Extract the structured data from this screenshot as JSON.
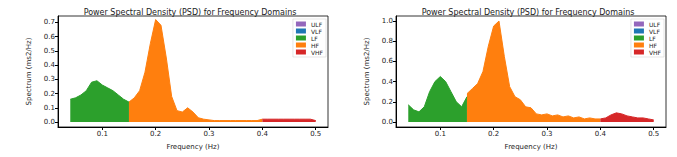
{
  "chart_data": [
    {
      "type": "area",
      "title": "Power Spectral Density (PSD) for Frequency Domains",
      "x_label": "Frequency (Hz)",
      "y_label": "Spectrum (ms2/Hz)",
      "xlim": [
        0.017,
        0.523
      ],
      "xticks": [
        0.1,
        0.2,
        0.3,
        0.4,
        0.5
      ],
      "ylim": [
        -0.035,
        0.745
      ],
      "yticks": [
        {
          "value": 0,
          "label": "0.0"
        },
        0.1,
        0.2,
        0.3,
        0.4,
        0.5,
        0.6,
        0.7
      ],
      "grid": false,
      "legend": "upper right",
      "x": [
        0.04,
        0.05,
        0.06,
        0.07,
        0.08,
        0.09,
        0.1,
        0.11,
        0.12,
        0.13,
        0.14,
        0.15,
        0.16,
        0.17,
        0.18,
        0.19,
        0.2,
        0.21,
        0.22,
        0.23,
        0.24,
        0.25,
        0.26,
        0.27,
        0.28,
        0.29,
        0.3,
        0.31,
        0.32,
        0.33,
        0.34,
        0.35,
        0.36,
        0.37,
        0.38,
        0.39,
        0.4,
        0.41,
        0.42,
        0.43,
        0.44,
        0.45,
        0.46,
        0.47,
        0.48,
        0.49,
        0.5
      ],
      "series": [
        {
          "name": "ULF",
          "color": "#9467bd",
          "values": [
            null,
            null,
            null,
            null,
            null,
            null,
            null,
            null,
            null,
            null,
            null,
            null,
            null,
            null,
            null,
            null,
            null,
            null,
            null,
            null,
            null,
            null,
            null,
            null,
            null,
            null,
            null,
            null,
            null,
            null,
            null,
            null,
            null,
            null,
            null,
            null,
            null,
            null,
            null,
            null,
            null,
            null,
            null,
            null,
            null,
            null,
            null
          ]
        },
        {
          "name": "VLF",
          "color": "#1f77b4",
          "values": [
            null,
            null,
            null,
            null,
            null,
            null,
            null,
            null,
            null,
            null,
            null,
            null,
            null,
            null,
            null,
            null,
            null,
            null,
            null,
            null,
            null,
            null,
            null,
            null,
            null,
            null,
            null,
            null,
            null,
            null,
            null,
            null,
            null,
            null,
            null,
            null,
            null,
            null,
            null,
            null,
            null,
            null,
            null,
            null,
            null,
            null,
            null
          ]
        },
        {
          "name": "LF",
          "color": "#2ca02c",
          "values": [
            0.16,
            0.17,
            0.19,
            0.22,
            0.28,
            0.29,
            0.26,
            0.24,
            0.22,
            0.19,
            0.16,
            0.14,
            null,
            null,
            null,
            null,
            null,
            null,
            null,
            null,
            null,
            null,
            null,
            null,
            null,
            null,
            null,
            null,
            null,
            null,
            null,
            null,
            null,
            null,
            null,
            null,
            null,
            null,
            null,
            null,
            null,
            null,
            null,
            null,
            null,
            null,
            null
          ]
        },
        {
          "name": "HF",
          "color": "#ff7f0e",
          "values": [
            null,
            null,
            null,
            null,
            null,
            null,
            null,
            null,
            null,
            null,
            null,
            0.14,
            0.17,
            0.22,
            0.35,
            0.55,
            0.72,
            0.68,
            0.45,
            0.18,
            0.08,
            0.07,
            0.1,
            0.07,
            0.03,
            0.02,
            0.015,
            0.01,
            0.01,
            0.01,
            0.01,
            0.01,
            0.01,
            0.01,
            0.01,
            0.01,
            0.02,
            null,
            null,
            null,
            null,
            null,
            null,
            null,
            null,
            null,
            null
          ]
        },
        {
          "name": "VHF",
          "color": "#d62728",
          "values": [
            null,
            null,
            null,
            null,
            null,
            null,
            null,
            null,
            null,
            null,
            null,
            null,
            null,
            null,
            null,
            null,
            null,
            null,
            null,
            null,
            null,
            null,
            null,
            null,
            null,
            null,
            null,
            null,
            null,
            null,
            null,
            null,
            null,
            null,
            null,
            null,
            0.02,
            0.02,
            0.02,
            0.02,
            0.02,
            0.02,
            0.02,
            0.02,
            0.02,
            0.02,
            0.01
          ]
        }
      ]
    },
    {
      "type": "area",
      "title": "Power Spectral Density (PSD) for Frequency Domains",
      "x_label": "Frequency (Hz)",
      "y_label": "Spectrum (ms2/Hz)",
      "xlim": [
        0.017,
        0.523
      ],
      "xticks": [
        0.1,
        0.2,
        0.3,
        0.4,
        0.5
      ],
      "ylim": [
        -0.05,
        1.05
      ],
      "yticks": [
        {
          "value": 0,
          "label": "0.0"
        },
        0.2,
        0.4,
        0.6,
        0.8,
        {
          "value": 1,
          "label": "1.0"
        }
      ],
      "grid": false,
      "legend": "upper right",
      "x": [
        0.04,
        0.05,
        0.06,
        0.07,
        0.08,
        0.09,
        0.1,
        0.11,
        0.12,
        0.13,
        0.14,
        0.15,
        0.16,
        0.17,
        0.18,
        0.19,
        0.2,
        0.21,
        0.22,
        0.23,
        0.24,
        0.25,
        0.26,
        0.27,
        0.28,
        0.29,
        0.3,
        0.31,
        0.32,
        0.33,
        0.34,
        0.35,
        0.36,
        0.37,
        0.38,
        0.39,
        0.4,
        0.41,
        0.42,
        0.43,
        0.44,
        0.45,
        0.46,
        0.47,
        0.48,
        0.49,
        0.5
      ],
      "series": [
        {
          "name": "ULF",
          "color": "#9467bd",
          "values": [
            null,
            null,
            null,
            null,
            null,
            null,
            null,
            null,
            null,
            null,
            null,
            null,
            null,
            null,
            null,
            null,
            null,
            null,
            null,
            null,
            null,
            null,
            null,
            null,
            null,
            null,
            null,
            null,
            null,
            null,
            null,
            null,
            null,
            null,
            null,
            null,
            null,
            null,
            null,
            null,
            null,
            null,
            null,
            null,
            null,
            null,
            null
          ]
        },
        {
          "name": "VLF",
          "color": "#1f77b4",
          "values": [
            null,
            null,
            null,
            null,
            null,
            null,
            null,
            null,
            null,
            null,
            null,
            null,
            null,
            null,
            null,
            null,
            null,
            null,
            null,
            null,
            null,
            null,
            null,
            null,
            null,
            null,
            null,
            null,
            null,
            null,
            null,
            null,
            null,
            null,
            null,
            null,
            null,
            null,
            null,
            null,
            null,
            null,
            null,
            null,
            null,
            null,
            null
          ]
        },
        {
          "name": "LF",
          "color": "#2ca02c",
          "values": [
            0.17,
            0.12,
            0.1,
            0.15,
            0.3,
            0.4,
            0.45,
            0.4,
            0.3,
            0.2,
            0.15,
            0.25,
            null,
            null,
            null,
            null,
            null,
            null,
            null,
            null,
            null,
            null,
            null,
            null,
            null,
            null,
            null,
            null,
            null,
            null,
            null,
            null,
            null,
            null,
            null,
            null,
            null,
            null,
            null,
            null,
            null,
            null,
            null,
            null,
            null,
            null,
            null
          ]
        },
        {
          "name": "HF",
          "color": "#ff7f0e",
          "values": [
            null,
            null,
            null,
            null,
            null,
            null,
            null,
            null,
            null,
            null,
            null,
            0.28,
            0.33,
            0.38,
            0.5,
            0.75,
            0.95,
            1.0,
            0.65,
            0.35,
            0.25,
            0.22,
            0.15,
            0.14,
            0.08,
            0.07,
            0.08,
            0.06,
            0.07,
            0.05,
            0.06,
            0.04,
            0.05,
            0.03,
            0.04,
            0.03,
            0.03,
            null,
            null,
            null,
            null,
            null,
            null,
            null,
            null,
            null,
            null
          ]
        },
        {
          "name": "VHF",
          "color": "#d62728",
          "values": [
            null,
            null,
            null,
            null,
            null,
            null,
            null,
            null,
            null,
            null,
            null,
            null,
            null,
            null,
            null,
            null,
            null,
            null,
            null,
            null,
            null,
            null,
            null,
            null,
            null,
            null,
            null,
            null,
            null,
            null,
            null,
            null,
            null,
            null,
            null,
            null,
            0.03,
            0.04,
            0.07,
            0.09,
            0.08,
            0.06,
            0.05,
            0.04,
            0.04,
            0.03,
            0.02
          ]
        }
      ]
    }
  ]
}
